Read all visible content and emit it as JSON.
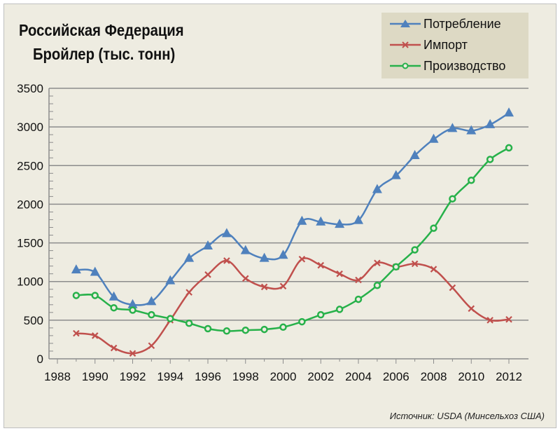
{
  "chart_data": {
    "type": "line",
    "title": "Российская Федерация",
    "subtitle": "Бройлер (тыс. тонн)",
    "xlabel": "",
    "ylabel": "",
    "xlim": [
      1988,
      2012
    ],
    "ylim": [
      0,
      3500
    ],
    "x_ticks": [
      1988,
      1990,
      1992,
      1994,
      1996,
      1998,
      2000,
      2002,
      2004,
      2006,
      2008,
      2010,
      2012
    ],
    "y_ticks": [
      0,
      500,
      1000,
      1500,
      2000,
      2500,
      3000,
      3500
    ],
    "grid": "horizontal",
    "legend_position": "top-right",
    "x": [
      1989,
      1990,
      1991,
      1992,
      1993,
      1994,
      1995,
      1996,
      1997,
      1998,
      1999,
      2000,
      2001,
      2002,
      2003,
      2004,
      2005,
      2006,
      2007,
      2008,
      2009,
      2010,
      2011,
      2012
    ],
    "series": [
      {
        "name": "Потребление",
        "color": "#4f81bd",
        "marker": "triangle",
        "values": [
          1150,
          1120,
          800,
          700,
          740,
          1010,
          1300,
          1460,
          1620,
          1400,
          1300,
          1340,
          1780,
          1770,
          1740,
          1790,
          2190,
          2370,
          2630,
          2840,
          2980,
          2950,
          3030,
          3180
        ]
      },
      {
        "name": "Импорт",
        "color": "#c0504d",
        "marker": "x",
        "values": [
          330,
          300,
          140,
          70,
          170,
          500,
          860,
          1090,
          1270,
          1040,
          930,
          940,
          1290,
          1210,
          1100,
          1020,
          1240,
          1190,
          1230,
          1160,
          920,
          650,
          500,
          510
        ]
      },
      {
        "name": "Производство",
        "color": "#27b14a",
        "marker": "circle",
        "values": [
          820,
          820,
          660,
          630,
          570,
          520,
          460,
          390,
          360,
          370,
          380,
          410,
          480,
          570,
          640,
          770,
          950,
          1190,
          1410,
          1690,
          2070,
          2310,
          2580,
          2730
        ]
      }
    ],
    "source": "Источник:  USDA  (Минсельхоз США)"
  }
}
